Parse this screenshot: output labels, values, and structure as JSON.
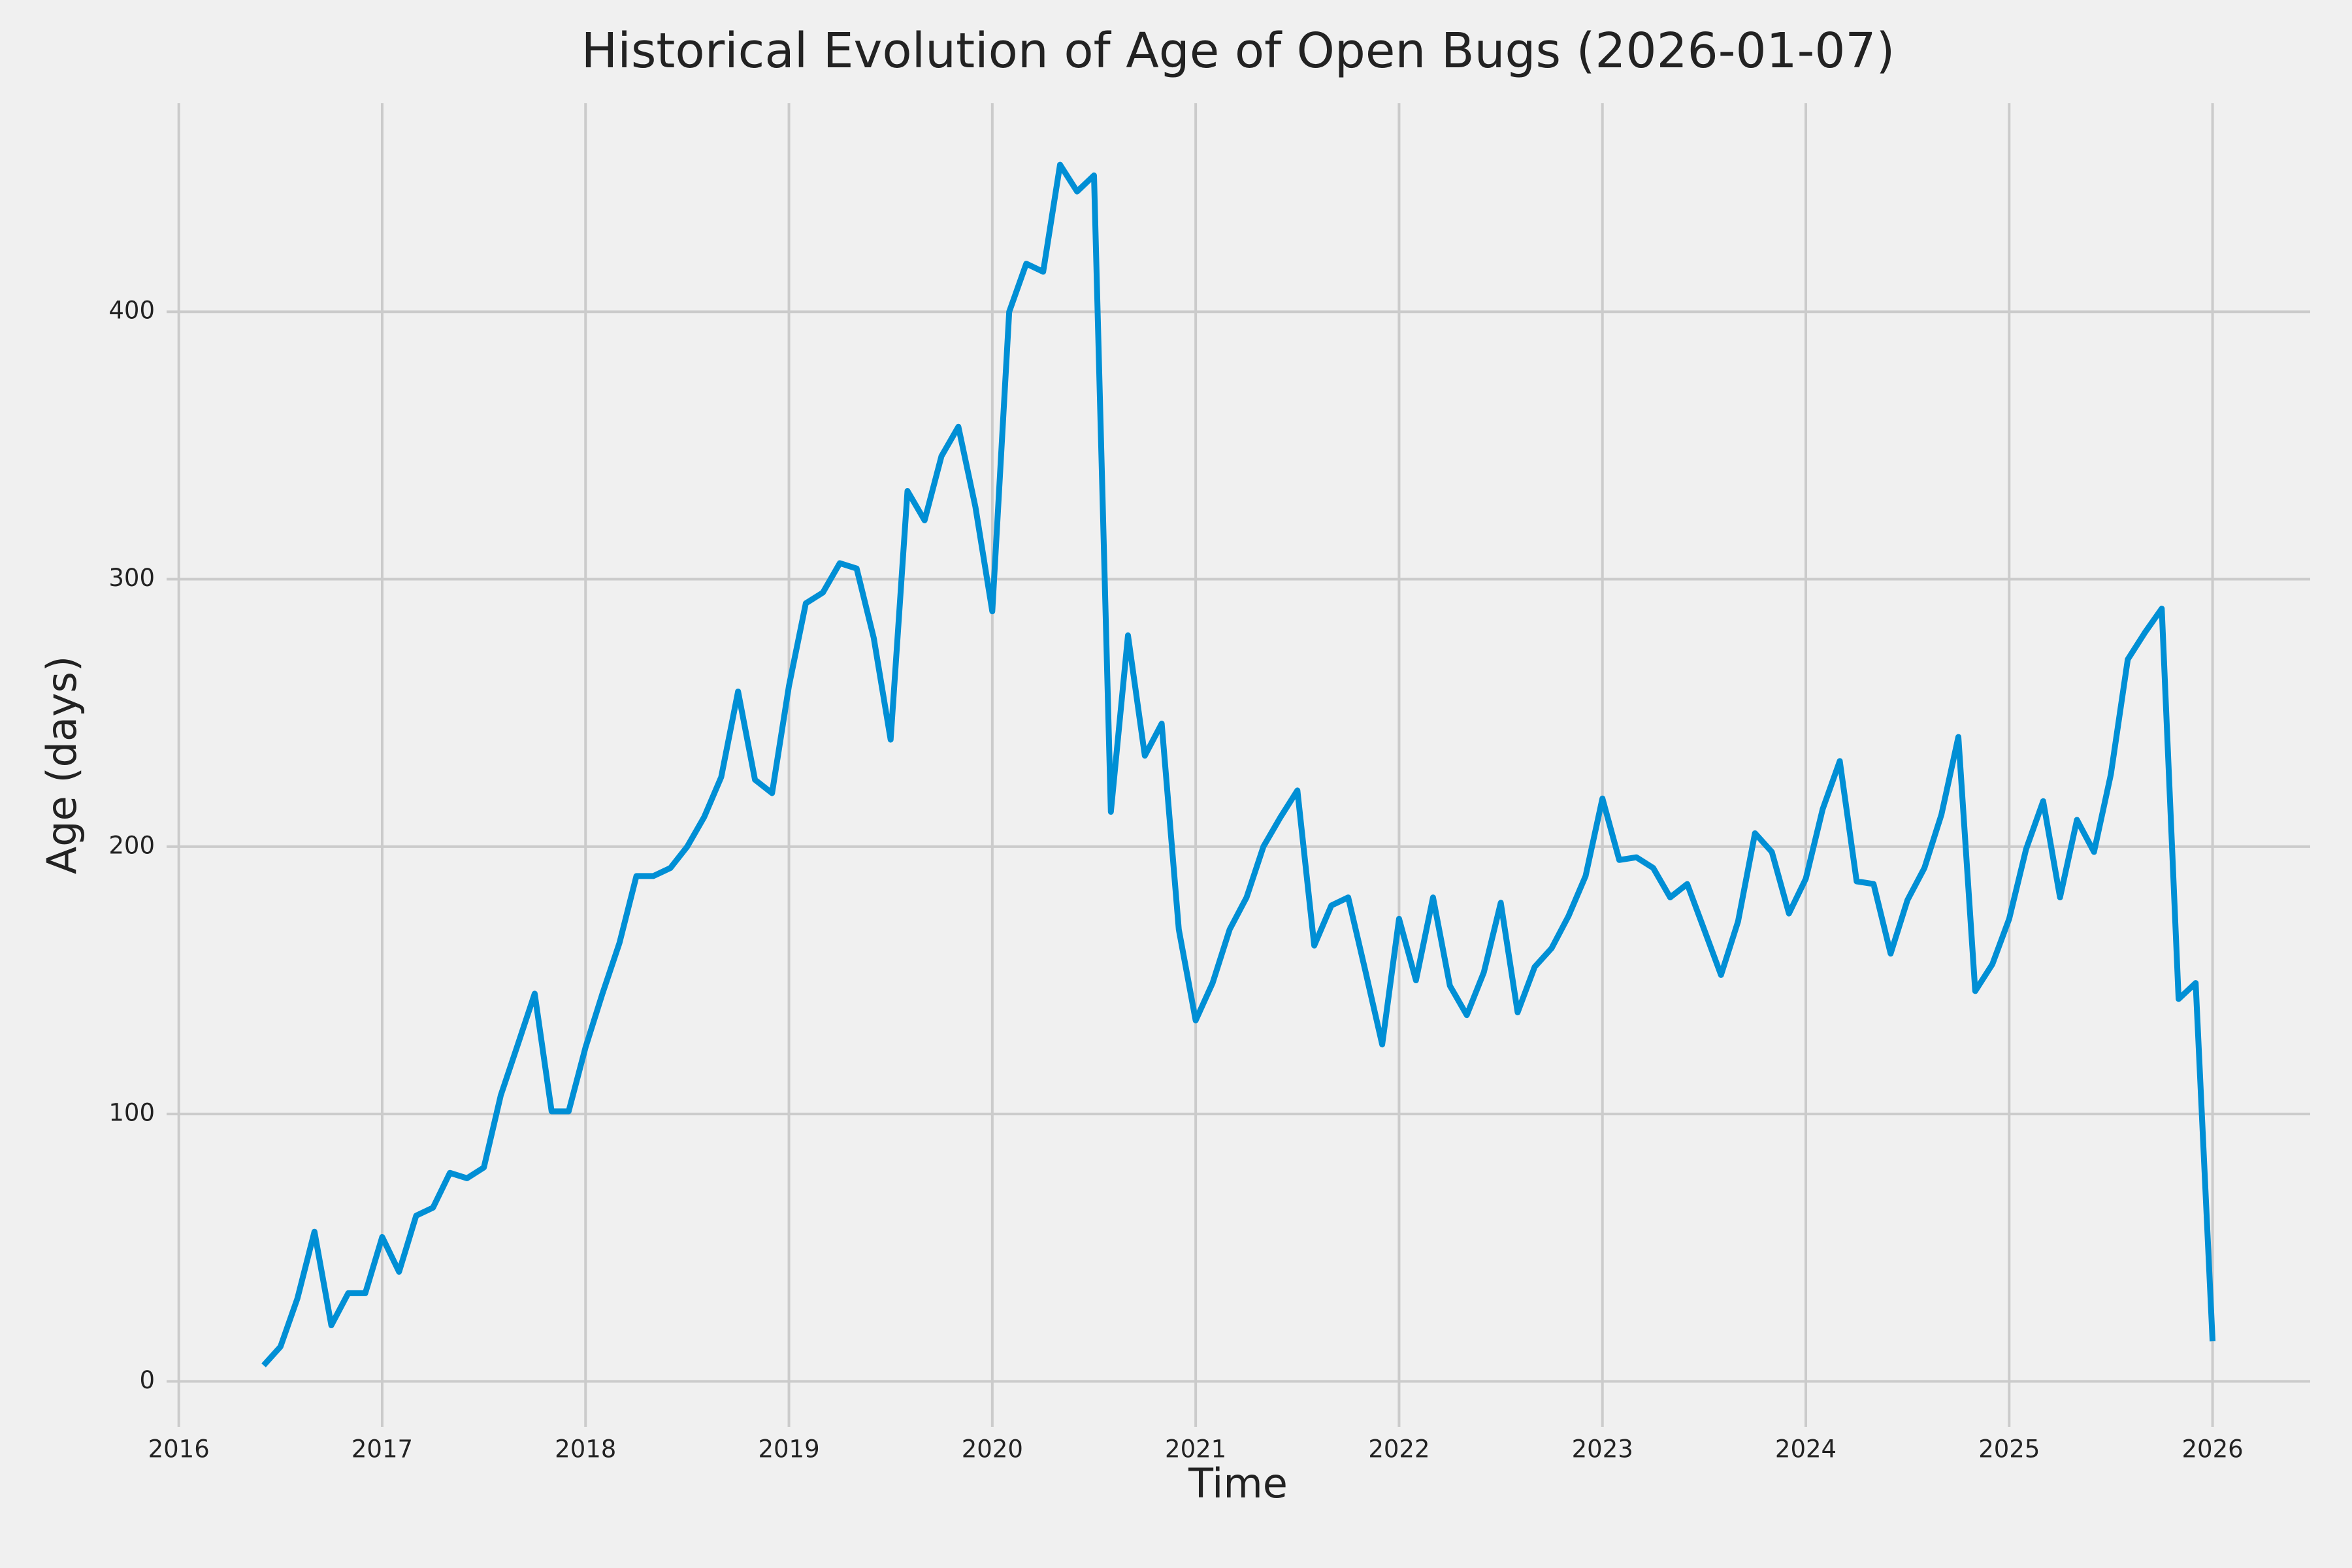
{
  "chart_data": {
    "type": "line",
    "title": "Historical Evolution of Age of Open Bugs (2026-01-07)",
    "xlabel": "Time",
    "ylabel": "Age (days)",
    "color": "#008fd5",
    "grid": true,
    "xlim": [
      2015.94,
      2026.48
    ],
    "ylim": [
      -17,
      478
    ],
    "xticks": [
      2016,
      2017,
      2018,
      2019,
      2020,
      2021,
      2022,
      2023,
      2024,
      2025,
      2026
    ],
    "yticks": [
      0,
      100,
      200,
      300,
      400
    ],
    "x": [
      2016.417,
      2016.5,
      2016.583,
      2016.667,
      2016.75,
      2016.833,
      2016.917,
      2017,
      2017.083,
      2017.167,
      2017.25,
      2017.333,
      2017.417,
      2017.5,
      2017.583,
      2017.667,
      2017.75,
      2017.833,
      2017.917,
      2018,
      2018.083,
      2018.167,
      2018.25,
      2018.333,
      2018.417,
      2018.5,
      2018.583,
      2018.667,
      2018.75,
      2018.833,
      2018.917,
      2019,
      2019.083,
      2019.167,
      2019.25,
      2019.333,
      2019.417,
      2019.5,
      2019.583,
      2019.667,
      2019.75,
      2019.833,
      2019.917,
      2020,
      2020.083,
      2020.167,
      2020.25,
      2020.333,
      2020.417,
      2020.5,
      2020.583,
      2020.667,
      2020.75,
      2020.833,
      2020.917,
      2021,
      2021.083,
      2021.167,
      2021.25,
      2021.333,
      2021.417,
      2021.5,
      2021.583,
      2021.667,
      2021.75,
      2021.833,
      2021.917,
      2022,
      2022.083,
      2022.167,
      2022.25,
      2022.333,
      2022.417,
      2022.5,
      2022.583,
      2022.667,
      2022.75,
      2022.833,
      2022.917,
      2023,
      2023.083,
      2023.167,
      2023.25,
      2023.333,
      2023.417,
      2023.5,
      2023.583,
      2023.667,
      2023.75,
      2023.833,
      2023.917,
      2024,
      2024.083,
      2024.167,
      2024.25,
      2024.333,
      2024.417,
      2024.5,
      2024.583,
      2024.667,
      2024.75,
      2024.833,
      2024.917,
      2025,
      2025.083,
      2025.167,
      2025.25,
      2025.333,
      2025.417,
      2025.5,
      2025.583,
      2025.667,
      2025.75,
      2025.833,
      2025.917,
      2026
    ],
    "values": [
      6,
      13,
      31,
      56,
      21,
      33,
      33,
      54,
      41,
      62,
      65,
      78,
      76,
      80,
      107,
      126,
      145,
      101,
      101,
      125,
      145,
      164,
      189,
      189,
      192,
      200,
      211,
      226,
      258,
      225,
      220,
      260,
      291,
      295,
      306,
      304,
      278,
      240,
      333,
      322,
      346,
      357,
      327,
      288,
      400,
      418,
      415,
      455,
      445,
      451,
      213,
      279,
      234,
      246,
      169,
      135,
      149,
      169,
      181,
      200,
      211,
      221,
      163,
      178,
      181,
      154,
      126,
      173,
      150,
      181,
      148,
      137,
      153,
      179,
      138,
      155,
      162,
      174,
      189,
      218,
      195,
      196,
      192,
      181,
      186,
      169,
      152,
      172,
      205,
      198,
      175,
      188,
      214,
      232,
      187,
      186,
      160,
      180,
      192,
      212,
      241,
      146,
      156,
      173,
      199,
      217,
      181,
      210,
      198,
      227,
      270,
      280,
      289,
      143,
      149,
      15
    ]
  }
}
